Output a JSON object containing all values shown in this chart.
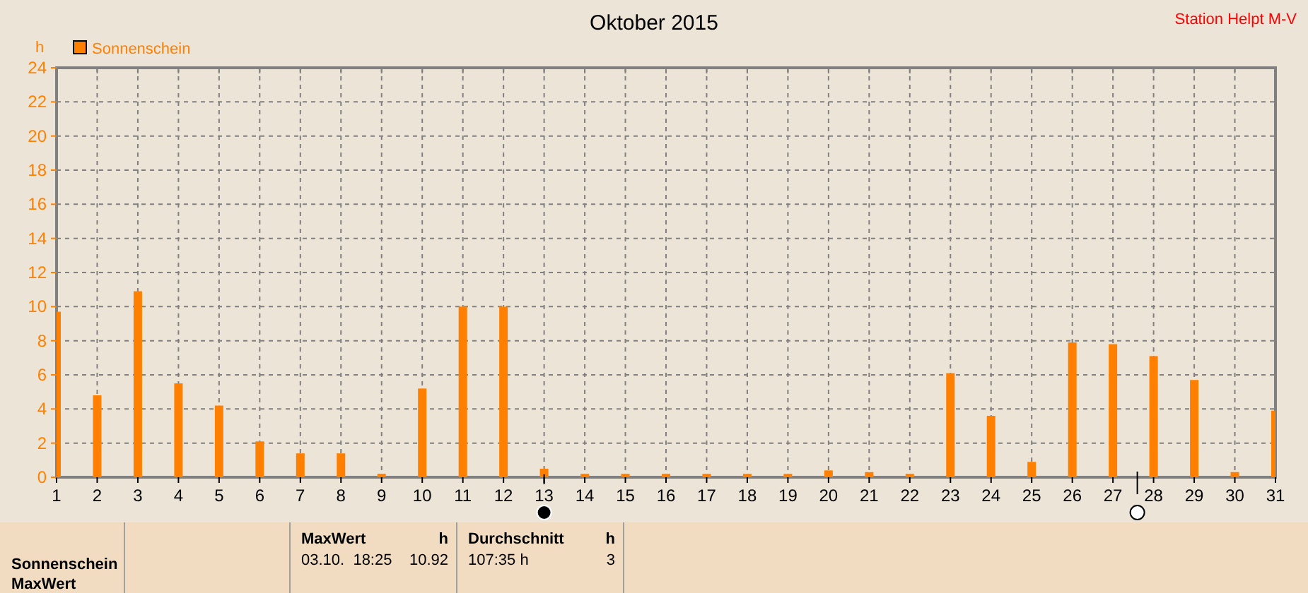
{
  "chart_data": {
    "type": "bar",
    "title": "Oktober 2015",
    "ylabel": "h",
    "x": [
      1,
      2,
      3,
      4,
      5,
      6,
      7,
      8,
      9,
      10,
      11,
      12,
      13,
      14,
      15,
      16,
      17,
      18,
      19,
      20,
      21,
      22,
      23,
      24,
      25,
      26,
      27,
      28,
      29,
      30,
      31
    ],
    "series": [
      {
        "name": "Sonnenschein",
        "color": "#ff8000",
        "values": [
          9.7,
          4.8,
          10.9,
          5.5,
          4.2,
          2.1,
          1.4,
          1.4,
          0.2,
          5.2,
          10,
          10,
          0.5,
          0.2,
          0.2,
          0.2,
          0.2,
          0.2,
          0.2,
          0.4,
          0.3,
          0.2,
          6.1,
          3.6,
          0.9,
          7.9,
          7.8,
          7.1,
          5.7,
          0.3,
          3.9
        ]
      }
    ],
    "xlim": [
      1,
      31
    ],
    "xticks": [
      1,
      2,
      3,
      4,
      5,
      6,
      7,
      8,
      9,
      10,
      11,
      12,
      13,
      14,
      15,
      16,
      17,
      18,
      19,
      20,
      21,
      22,
      23,
      24,
      25,
      26,
      27,
      28,
      29,
      30,
      31
    ],
    "ylim": [
      0,
      24
    ],
    "yticks": [
      0,
      2,
      4,
      6,
      8,
      10,
      12,
      14,
      16,
      18,
      20,
      22,
      24
    ],
    "grid": true,
    "legend": "top left",
    "annotations": [
      "Station Helpt M-V",
      "Sonnenschein",
      "MaxWert",
      "MaxWert",
      "h",
      "03.10.  18:25",
      "10.92",
      "Durchschnitt",
      "h",
      "107:35 h",
      "3"
    ]
  }
}
